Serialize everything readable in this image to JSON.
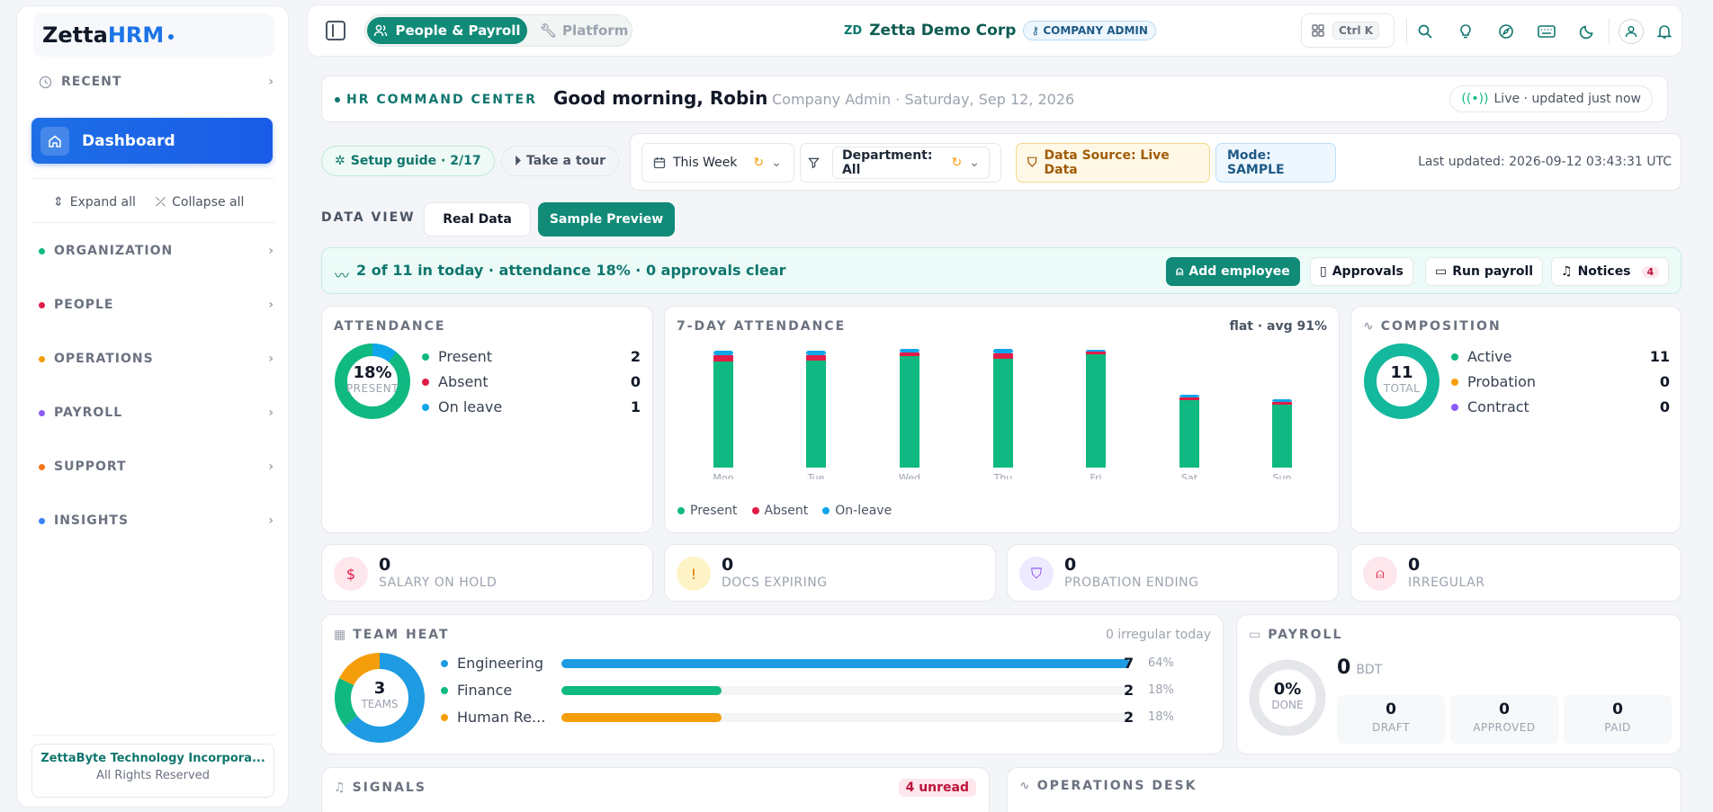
{
  "sidebar": {
    "logo_bold": "Zetta",
    "logo_accent": "HRM",
    "recent_label": "RECENT",
    "dashboard_label": "Dashboard",
    "expand_all": "Expand all",
    "collapse_all": "Collapse all",
    "sections": [
      {
        "label": "ORGANIZATION",
        "color": "#10b981"
      },
      {
        "label": "PEOPLE",
        "color": "#e11d48"
      },
      {
        "label": "OPERATIONS",
        "color": "#f59e0b"
      },
      {
        "label": "PAYROLL",
        "color": "#8b5cf6"
      },
      {
        "label": "SUPPORT",
        "color": "#f97316"
      },
      {
        "label": "INSIGHTS",
        "color": "#3b82f6"
      }
    ],
    "footer_company": "ZettaByte Technology Incorpora...",
    "footer_rights": "All Rights Reserved"
  },
  "topbar": {
    "tab_people": "People & Payroll",
    "tab_platform": "Platform",
    "company_initials": "ZD",
    "company_name": "Zetta Demo Corp",
    "role_badge": "COMPANY ADMIN",
    "shortcut": "Ctrl K"
  },
  "header": {
    "tag": "HR COMMAND CENTER",
    "greeting": "Good morning, Robin",
    "subtitle": "Company Admin · Saturday, Sep 12, 2026",
    "live": "Live · updated just now"
  },
  "filters": {
    "setup_guide": "Setup guide · 2/17",
    "take_tour": "Take a tour",
    "period": "This Week",
    "department": "Department: All",
    "data_source": "Data Source: Live Data",
    "mode": "Mode: SAMPLE",
    "last_updated": "Last updated: 2026-09-12 03:43:31 UTC"
  },
  "data_view": {
    "label": "DATA VIEW",
    "real": "Real Data",
    "sample": "Sample Preview"
  },
  "banner": {
    "text": "2 of 11 in today · attendance 18% · 0 approvals clear",
    "add_employee": "Add employee",
    "approvals": "Approvals",
    "run_payroll": "Run payroll",
    "notices": "Notices",
    "notices_count": "4"
  },
  "attendance": {
    "title": "ATTENDANCE",
    "pct": "18%",
    "pct_label": "PRESENT",
    "rows": [
      {
        "label": "Present",
        "value": "2",
        "color": "#10b981"
      },
      {
        "label": "Absent",
        "value": "0",
        "color": "#e11d48"
      },
      {
        "label": "On leave",
        "value": "1",
        "color": "#0ea5e9"
      }
    ]
  },
  "week": {
    "title": "7-DAY ATTENDANCE",
    "trend": "flat · avg 91%",
    "legend": [
      "Present",
      "Absent",
      "On-leave"
    ]
  },
  "chart_data": {
    "type": "bar",
    "stacked": true,
    "categories": [
      "Mon",
      "Tue",
      "Wed",
      "Thu",
      "Fri",
      "Sat",
      "Sun"
    ],
    "series": [
      {
        "name": "Present",
        "color": "#10b981",
        "values": [
          118,
          119,
          124,
          121,
          126,
          75,
          70
        ]
      },
      {
        "name": "Absent",
        "color": "#e11d48",
        "values": [
          7,
          6,
          4,
          6,
          3,
          3,
          3
        ]
      },
      {
        "name": "On-leave",
        "color": "#0ea5e9",
        "values": [
          5,
          5,
          4,
          5,
          2,
          3,
          3
        ]
      }
    ]
  },
  "composition": {
    "title": "COMPOSITION",
    "total": "11",
    "total_label": "TOTAL",
    "rows": [
      {
        "label": "Active",
        "value": "11",
        "color": "#10b981"
      },
      {
        "label": "Probation",
        "value": "0",
        "color": "#f59e0b"
      },
      {
        "label": "Contract",
        "value": "0",
        "color": "#8b5cf6"
      }
    ]
  },
  "kpis": [
    {
      "value": "0",
      "label": "SALARY ON HOLD",
      "icon": "dollar-icon"
    },
    {
      "value": "0",
      "label": "DOCS EXPIRING",
      "icon": "doc-alert-icon"
    },
    {
      "value": "0",
      "label": "PROBATION ENDING",
      "icon": "shield-icon"
    },
    {
      "value": "0",
      "label": "IRREGULAR",
      "icon": "user-x-icon"
    }
  ],
  "team_heat": {
    "title": "TEAM HEAT",
    "note": "0 irregular today",
    "teams_count": "3",
    "teams_label": "TEAMS",
    "rows": [
      {
        "label": "Engineering",
        "count": "7",
        "pct": "64%",
        "fraction": 0.64,
        "color": "#1e9be2"
      },
      {
        "label": "Finance",
        "count": "2",
        "pct": "18%",
        "fraction": 0.18,
        "color": "#10b981"
      },
      {
        "label": "Human Re...",
        "count": "2",
        "pct": "18%",
        "fraction": 0.18,
        "color": "#f59e0b"
      }
    ]
  },
  "payroll": {
    "title": "PAYROLL",
    "done_pct": "0%",
    "done_label": "DONE",
    "amount": "0",
    "currency": "BDT",
    "stats": [
      {
        "value": "0",
        "label": "DRAFT"
      },
      {
        "value": "0",
        "label": "APPROVED"
      },
      {
        "value": "0",
        "label": "PAID"
      }
    ]
  },
  "signals": {
    "title": "SIGNALS",
    "unread": "4 unread"
  },
  "operations": {
    "title": "OPERATIONS DESK"
  }
}
